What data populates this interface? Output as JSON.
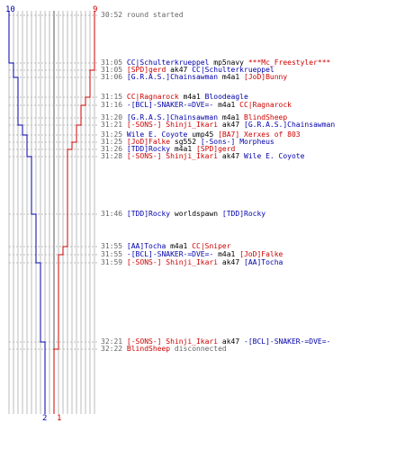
{
  "colors": {
    "blue_team": "#0000aa",
    "red_team": "#cc0000",
    "time": "#666666",
    "grid": "#bbbbbb",
    "center": "#555555"
  },
  "axis": {
    "blue_start": "10",
    "red_start": "9",
    "blue_end": "2",
    "red_end": "1"
  },
  "events": [
    {
      "time": "30:52",
      "parts": [
        {
          "text": "round started",
          "c": "gray"
        }
      ]
    },
    {
      "time": "31:05",
      "parts": [
        {
          "text": "CC|Schulterkrueppel",
          "c": "blue"
        },
        {
          "text": "mp5navy",
          "c": "plain"
        },
        {
          "text": "***Mc_Freestyler***",
          "c": "red"
        }
      ]
    },
    {
      "time": "31:05",
      "parts": [
        {
          "text": "[SPD]gerd",
          "c": "red"
        },
        {
          "text": "ak47",
          "c": "plain"
        },
        {
          "text": "CC|Schulterkrueppel",
          "c": "blue"
        }
      ]
    },
    {
      "time": "31:06",
      "parts": [
        {
          "text": "[G.R.A.S.]Chainsawman",
          "c": "blue"
        },
        {
          "text": "m4a1",
          "c": "plain"
        },
        {
          "text": "[JoD]Bunny",
          "c": "red"
        }
      ]
    },
    {
      "time": "31:15",
      "parts": [
        {
          "text": "CC|Ragnarock",
          "c": "red"
        },
        {
          "text": "m4a1",
          "c": "plain"
        },
        {
          "text": "Bloodeagle",
          "c": "blue"
        }
      ]
    },
    {
      "time": "31:16",
      "parts": [
        {
          "text": "-[BCL]-SNAKER-=DVE=-",
          "c": "blue"
        },
        {
          "text": "m4a1",
          "c": "plain"
        },
        {
          "text": "CC|Ragnarock",
          "c": "red"
        }
      ]
    },
    {
      "time": "31:20",
      "parts": [
        {
          "text": "[G.R.A.S.]Chainsawman",
          "c": "blue"
        },
        {
          "text": "m4a1",
          "c": "plain"
        },
        {
          "text": "BlindSheep",
          "c": "red"
        }
      ]
    },
    {
      "time": "31:21",
      "parts": [
        {
          "text": "[-SONS-] Shinji_Ikari",
          "c": "red"
        },
        {
          "text": "ak47",
          "c": "plain"
        },
        {
          "text": "[G.R.A.S.]Chainsawman",
          "c": "blue"
        }
      ]
    },
    {
      "time": "31:25",
      "parts": [
        {
          "text": "Wile E. Coyote",
          "c": "blue"
        },
        {
          "text": "ump45",
          "c": "plain"
        },
        {
          "text": "[BA7] Xerxes of 803",
          "c": "red"
        }
      ]
    },
    {
      "time": "31:25",
      "parts": [
        {
          "text": "[JoD]Falke",
          "c": "red"
        },
        {
          "text": "sg552",
          "c": "plain"
        },
        {
          "text": "[-Sons-] Morpheus",
          "c": "blue"
        }
      ]
    },
    {
      "time": "31:26",
      "parts": [
        {
          "text": "[TDD]Rocky",
          "c": "blue"
        },
        {
          "text": "m4a1",
          "c": "plain"
        },
        {
          "text": "[SPD]gerd",
          "c": "red"
        }
      ]
    },
    {
      "time": "31:28",
      "parts": [
        {
          "text": "[-SONS-] Shinji_Ikari",
          "c": "red"
        },
        {
          "text": "ak47",
          "c": "plain"
        },
        {
          "text": "Wile E. Coyote",
          "c": "blue"
        }
      ]
    },
    {
      "time": "31:46",
      "parts": [
        {
          "text": "[TDD]Rocky",
          "c": "blue"
        },
        {
          "text": "worldspawn",
          "c": "plain"
        },
        {
          "text": "[TDD]Rocky",
          "c": "blue"
        }
      ]
    },
    {
      "time": "31:55",
      "parts": [
        {
          "text": "[AA]Tocha",
          "c": "blue"
        },
        {
          "text": "m4a1",
          "c": "plain"
        },
        {
          "text": "CC|Sniper",
          "c": "red"
        }
      ]
    },
    {
      "time": "31:55",
      "parts": [
        {
          "text": "-[BCL]-SNAKER-=DVE=-",
          "c": "blue"
        },
        {
          "text": "m4a1",
          "c": "plain"
        },
        {
          "text": "[JoD]Falke",
          "c": "red"
        }
      ]
    },
    {
      "time": "31:59",
      "parts": [
        {
          "text": "[-SONS-] Shinji_Ikari",
          "c": "red"
        },
        {
          "text": "ak47",
          "c": "plain"
        },
        {
          "text": "[AA]Tocha",
          "c": "blue"
        }
      ]
    },
    {
      "time": "32:21",
      "parts": [
        {
          "text": "[-SONS-] Shinji_Ikari",
          "c": "red"
        },
        {
          "text": "ak47",
          "c": "plain"
        },
        {
          "text": "-[BCL]-SNAKER-=DVE=-",
          "c": "blue"
        }
      ]
    },
    {
      "time": "32:22",
      "parts": [
        {
          "text": "BlindSheep",
          "c": "red"
        },
        {
          "text": "disconnected",
          "c": "gray"
        }
      ]
    }
  ]
}
